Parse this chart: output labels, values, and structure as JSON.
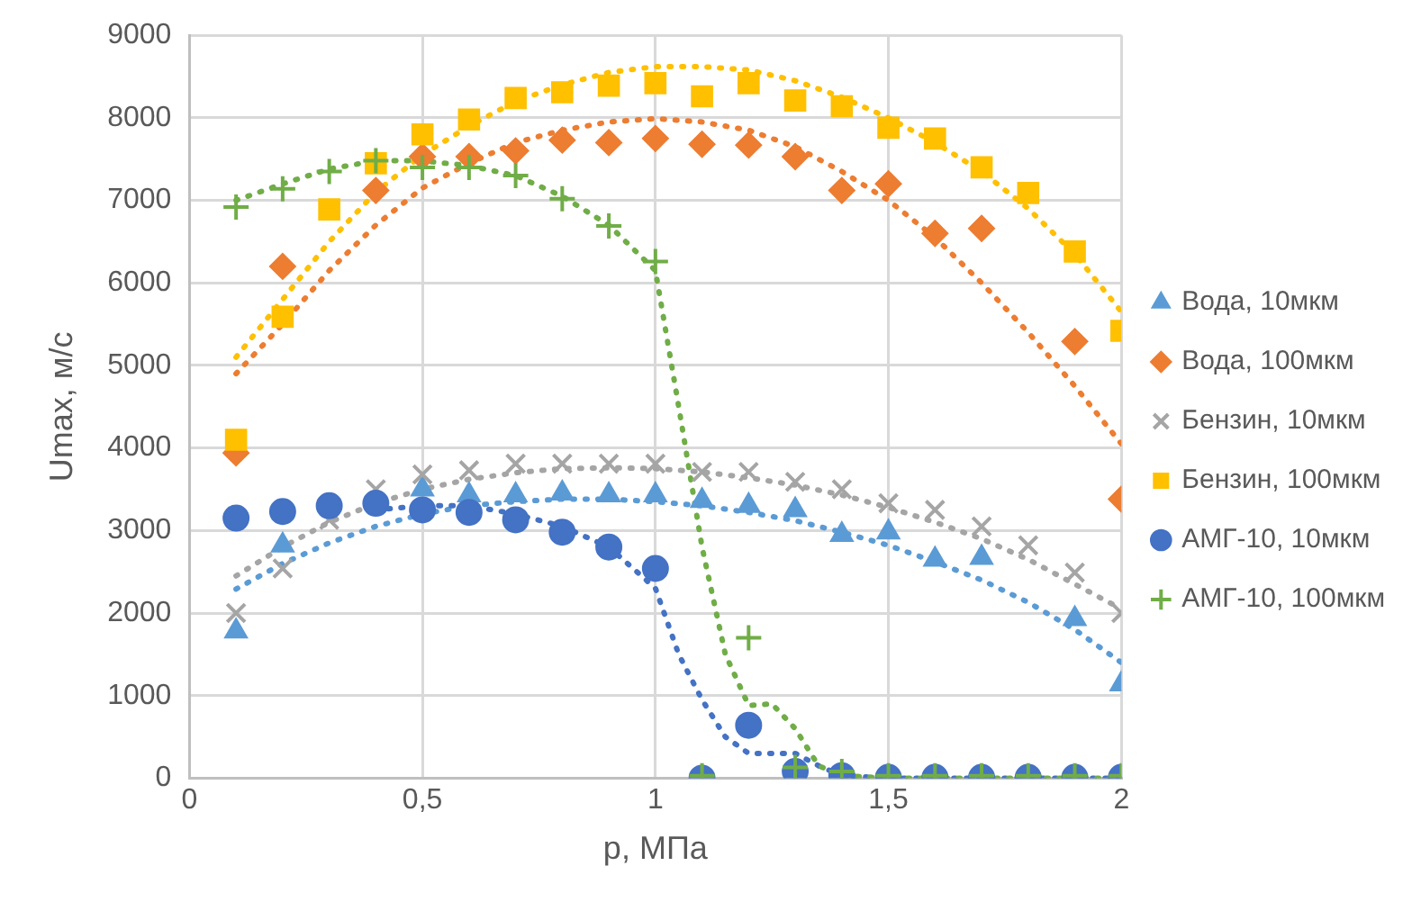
{
  "chart_data": {
    "type": "scatter",
    "xlabel": "p, МПа",
    "ylabel": "Umax, м/с",
    "x": [
      0.1,
      0.2,
      0.3,
      0.4,
      0.5,
      0.6,
      0.7,
      0.8,
      0.9,
      1.0,
      1.1,
      1.2,
      1.3,
      1.4,
      1.5,
      1.6,
      1.7,
      1.8,
      1.9,
      2.0
    ],
    "xlim": [
      0,
      2
    ],
    "xticks": [
      0,
      {
        "value": 0.5,
        "label": "0,5"
      },
      1,
      {
        "value": 1.5,
        "label": "1,5"
      },
      2
    ],
    "ylim": [
      0,
      9000
    ],
    "yticks": [
      0,
      1000,
      2000,
      3000,
      4000,
      5000,
      6000,
      7000,
      8000,
      9000
    ],
    "grid": true,
    "legend": "right",
    "series": [
      {
        "name": "Вода, 10мкм",
        "color": "#5b9bd5",
        "marker": "triangle",
        "values": [
          1780,
          2820,
          null,
          null,
          3500,
          3430,
          3430,
          3450,
          3430,
          3430,
          3360,
          3300,
          3250,
          2950,
          2980,
          2650,
          2670,
          null,
          1930,
          1140
        ]
      },
      {
        "name": "Вода, 100мкм",
        "color": "#ed7d31",
        "marker": "diamond",
        "values": [
          3940,
          6200,
          null,
          7120,
          7530,
          7530,
          7600,
          7730,
          7700,
          7750,
          7680,
          7670,
          7530,
          7120,
          7200,
          6600,
          6660,
          null,
          5290,
          3380
        ]
      },
      {
        "name": "Бензин, 10мкм",
        "color": "#a5a5a5",
        "marker": "cross",
        "values": [
          2000,
          2540,
          3130,
          3500,
          3680,
          3730,
          3810,
          3810,
          3810,
          3810,
          3710,
          3710,
          3590,
          3500,
          3330,
          3250,
          3050,
          2820,
          2490,
          2000
        ]
      },
      {
        "name": "Бензин, 100мкм",
        "color": "#ffc000",
        "marker": "square",
        "values": [
          4100,
          5590,
          6890,
          7450,
          7800,
          7980,
          8240,
          8310,
          8390,
          8420,
          8260,
          8420,
          8210,
          8140,
          7880,
          7750,
          7400,
          7090,
          6380,
          5420
        ]
      },
      {
        "name": "АМГ-10, 10мкм",
        "color": "#4472c4",
        "marker": "circle",
        "values": [
          3150,
          3230,
          3300,
          3330,
          3250,
          3220,
          3130,
          2980,
          2800,
          2540,
          0,
          640,
          80,
          30,
          10,
          10,
          10,
          10,
          10,
          10
        ]
      },
      {
        "name": "АМГ-10, 100мкм",
        "color": "#70ad47",
        "marker": "plus",
        "values": [
          6920,
          7140,
          7350,
          7480,
          7400,
          7400,
          7300,
          7020,
          6690,
          6260,
          30,
          1700,
          130,
          80,
          30,
          30,
          30,
          30,
          30,
          30
        ]
      },
      {
        "type": "line",
        "color": "#5b9bd5",
        "marker": "none",
        "line_style": "dotted",
        "x": [
          0.1,
          0.2,
          0.3,
          0.4,
          0.5,
          0.6,
          0.7,
          0.8,
          0.9,
          1.0,
          1.1,
          1.2,
          1.3,
          1.4,
          1.5,
          1.6,
          1.7,
          1.8,
          1.9,
          2.0
        ],
        "values": [
          2290,
          2600,
          2850,
          3050,
          3200,
          3300,
          3350,
          3380,
          3380,
          3350,
          3300,
          3220,
          3120,
          2980,
          2820,
          2620,
          2400,
          2130,
          1800,
          1400
        ]
      },
      {
        "type": "line",
        "color": "#ed7d31",
        "marker": "none",
        "line_style": "dotted",
        "x": [
          0.1,
          0.2,
          0.3,
          0.4,
          0.5,
          0.6,
          0.7,
          0.8,
          0.9,
          1.0,
          1.1,
          1.2,
          1.3,
          1.4,
          1.5,
          1.6,
          1.7,
          1.8,
          1.9,
          2.0
        ],
        "values": [
          4900,
          5500,
          6150,
          6700,
          7150,
          7450,
          7700,
          7850,
          7950,
          7990,
          7950,
          7850,
          7650,
          7350,
          7000,
          6550,
          6000,
          5400,
          4750,
          4050
        ]
      },
      {
        "type": "line",
        "color": "#a5a5a5",
        "marker": "none",
        "line_style": "dotted",
        "x": [
          0.1,
          0.2,
          0.3,
          0.4,
          0.5,
          0.6,
          0.7,
          0.8,
          0.9,
          1.0,
          1.1,
          1.2,
          1.3,
          1.4,
          1.5,
          1.6,
          1.7,
          1.8,
          1.9,
          2.0
        ],
        "values": [
          2450,
          2800,
          3100,
          3330,
          3500,
          3620,
          3700,
          3750,
          3760,
          3750,
          3710,
          3640,
          3550,
          3430,
          3280,
          3100,
          2900,
          2650,
          2350,
          2050
        ]
      },
      {
        "type": "line",
        "color": "#ffc000",
        "marker": "none",
        "line_style": "dotted",
        "x": [
          0.1,
          0.2,
          0.3,
          0.4,
          0.5,
          0.6,
          0.7,
          0.8,
          0.9,
          1.0,
          1.1,
          1.2,
          1.3,
          1.4,
          1.5,
          1.6,
          1.7,
          1.8,
          1.9,
          2.0
        ],
        "values": [
          5100,
          5800,
          6500,
          7100,
          7550,
          7900,
          8200,
          8400,
          8550,
          8620,
          8620,
          8580,
          8450,
          8250,
          8000,
          7700,
          7350,
          6900,
          6350,
          5650
        ]
      },
      {
        "type": "line",
        "color": "#4472c4",
        "marker": "none",
        "line_style": "dotted",
        "x": [
          0.4,
          0.5,
          0.6,
          0.7,
          0.8,
          0.9,
          1.0,
          1.05,
          1.1,
          1.15,
          1.2,
          1.3,
          1.35,
          1.4,
          1.5,
          2.0
        ],
        "values": [
          3250,
          3300,
          3300,
          3200,
          3050,
          2800,
          2300,
          1500,
          950,
          500,
          300,
          300,
          150,
          30,
          0,
          0
        ]
      },
      {
        "type": "line",
        "color": "#70ad47",
        "marker": "none",
        "line_style": "dotted",
        "x": [
          0.1,
          0.2,
          0.3,
          0.4,
          0.5,
          0.6,
          0.7,
          0.8,
          0.9,
          1.0,
          1.05,
          1.1,
          1.15,
          1.2,
          1.25,
          1.3,
          1.35,
          1.4,
          1.5,
          2.0
        ],
        "values": [
          7000,
          7200,
          7380,
          7480,
          7480,
          7420,
          7300,
          7050,
          6700,
          6150,
          4500,
          2800,
          1500,
          880,
          900,
          600,
          150,
          30,
          0,
          0
        ]
      }
    ]
  }
}
